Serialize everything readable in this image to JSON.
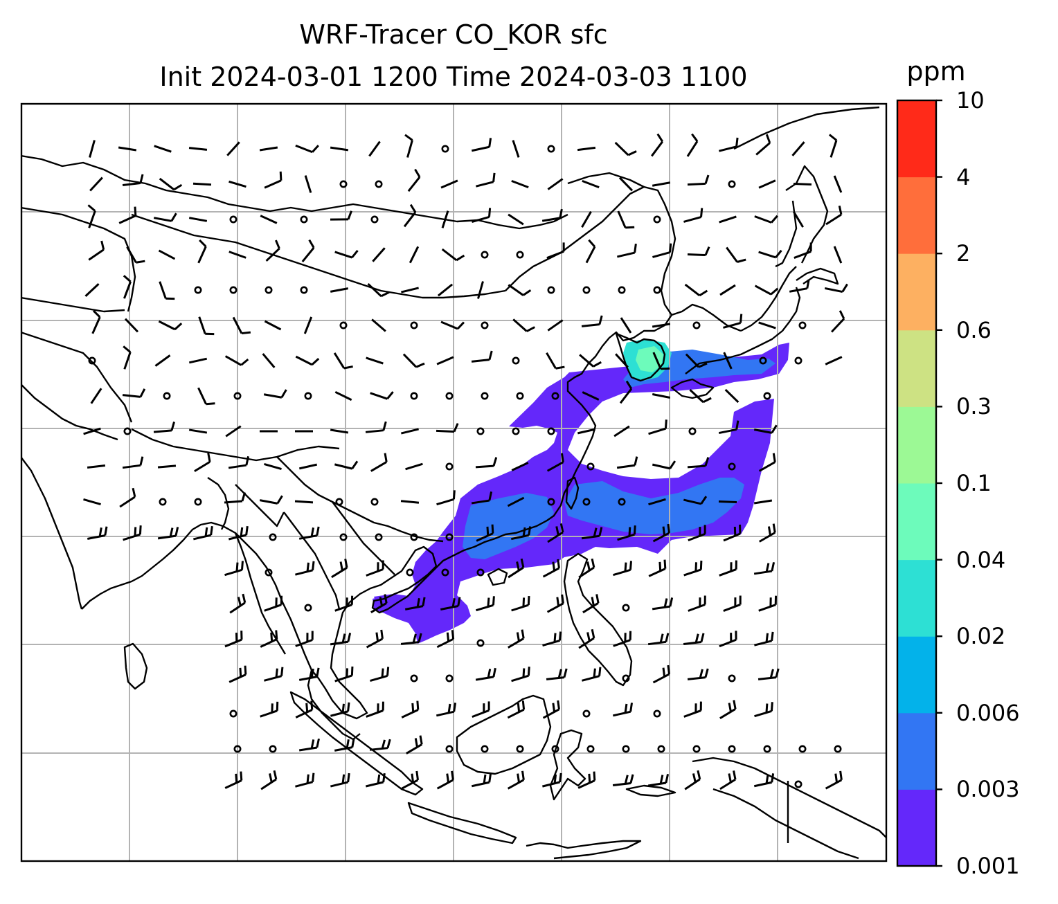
{
  "title": {
    "line1": "WRF-Tracer CO_KOR sfc",
    "line2": "Init 2024-03-01 1200 Time 2024-03-03 1100"
  },
  "colorbar": {
    "unit": "ppm",
    "levels": [
      "0.001",
      "0.003",
      "0.006",
      "0.02",
      "0.04",
      "0.1",
      "0.3",
      "0.6",
      "2",
      "4",
      "10"
    ],
    "colors": [
      "#6428fa",
      "#3276f3",
      "#03b2ea",
      "#2de0d4",
      "#6dfbbb",
      "#9cf995",
      "#cde283",
      "#fdb061",
      "#ff6e3b",
      "#ff2a19"
    ]
  },
  "map": {
    "gridlines": true,
    "coastline_color": "#000000",
    "grid_color": "#b3b3b3",
    "plume_colors": {
      "low": "#6428fa",
      "mid": "#3276f3",
      "high": "#2de0d4",
      "peak": "#6dfbbb"
    }
  }
}
